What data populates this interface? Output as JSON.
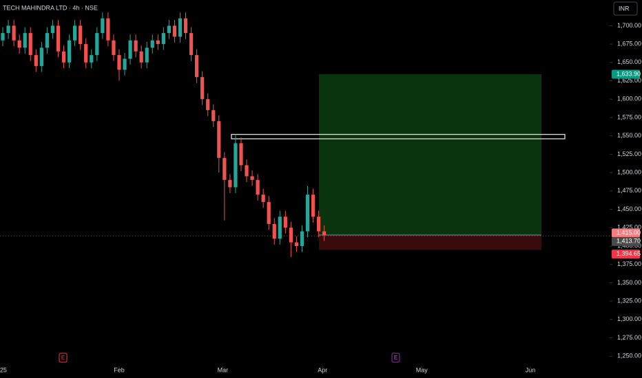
{
  "chart_data": {
    "type": "candlestick",
    "title": "TECH MAHINDRA LTD · 4h · NSE",
    "currency": "INR",
    "up_color": "#26a69a",
    "down_color": "#ef5350",
    "open": [
      1680,
      1690,
      1700,
      1680,
      1670,
      1690,
      1660,
      1645,
      1670,
      1690,
      1700,
      1665,
      1650,
      1680,
      1700,
      1675,
      1650,
      1660,
      1690,
      1710,
      1680,
      1660,
      1640,
      1655,
      1680,
      1665,
      1650,
      1670,
      1680,
      1675,
      1690,
      1700,
      1685,
      1710,
      1690,
      1660,
      1630,
      1600,
      1585,
      1570,
      1520,
      1490,
      1480,
      1540,
      1510,
      1495,
      1490,
      1470,
      1460,
      1430,
      1410,
      1440,
      1425,
      1405,
      1400,
      1420,
      1470,
      1440,
      1420
    ],
    "high": [
      1698,
      1708,
      1708,
      1688,
      1698,
      1698,
      1668,
      1678,
      1698,
      1708,
      1708,
      1673,
      1688,
      1708,
      1708,
      1683,
      1668,
      1698,
      1718,
      1718,
      1688,
      1668,
      1663,
      1688,
      1688,
      1673,
      1678,
      1688,
      1688,
      1698,
      1708,
      1708,
      1718,
      1718,
      1698,
      1668,
      1638,
      1608,
      1593,
      1578,
      1528,
      1498,
      1552,
      1548,
      1518,
      1503,
      1498,
      1478,
      1468,
      1438,
      1448,
      1448,
      1433,
      1413,
      1428,
      1482,
      1478,
      1448,
      1428
    ],
    "low": [
      1672,
      1682,
      1672,
      1662,
      1662,
      1652,
      1637,
      1637,
      1662,
      1682,
      1657,
      1642,
      1642,
      1672,
      1667,
      1642,
      1642,
      1652,
      1682,
      1672,
      1652,
      1625,
      1632,
      1647,
      1657,
      1642,
      1642,
      1662,
      1667,
      1667,
      1682,
      1677,
      1677,
      1682,
      1652,
      1622,
      1592,
      1577,
      1562,
      1500,
      1435,
      1472,
      1472,
      1502,
      1487,
      1482,
      1462,
      1452,
      1422,
      1402,
      1402,
      1417,
      1385,
      1392,
      1392,
      1412,
      1432,
      1412,
      1407
    ],
    "close": [
      1690,
      1700,
      1680,
      1670,
      1690,
      1660,
      1645,
      1670,
      1690,
      1700,
      1665,
      1650,
      1680,
      1700,
      1675,
      1650,
      1660,
      1690,
      1710,
      1680,
      1660,
      1640,
      1655,
      1680,
      1665,
      1650,
      1670,
      1680,
      1675,
      1690,
      1700,
      1685,
      1710,
      1690,
      1660,
      1630,
      1600,
      1585,
      1570,
      1520,
      1490,
      1480,
      1540,
      1510,
      1495,
      1490,
      1470,
      1460,
      1430,
      1410,
      1440,
      1425,
      1405,
      1400,
      1420,
      1470,
      1440,
      1420,
      1415
    ],
    "xlim": [
      -0.5,
      109.5
    ],
    "xticks": [
      {
        "value": 0.1,
        "label": "25"
      },
      {
        "value": 21,
        "label": "Feb"
      },
      {
        "value": 39.7,
        "label": "Mar"
      },
      {
        "value": 57.7,
        "label": "Apr"
      },
      {
        "value": 75.6,
        "label": "May"
      },
      {
        "value": 95.2,
        "label": "Jun"
      }
    ],
    "ylim": [
      1225,
      1735
    ],
    "yticks": [
      {
        "value": 1250,
        "label": "1,250.00"
      },
      {
        "value": 1275,
        "label": "1,275.00"
      },
      {
        "value": 1300,
        "label": "1,300.00"
      },
      {
        "value": 1325,
        "label": "1,325.00"
      },
      {
        "value": 1350,
        "label": "1,350.00"
      },
      {
        "value": 1375,
        "label": "1,375.00"
      },
      {
        "value": 1400,
        "label": "1,400.00"
      },
      {
        "value": 1425,
        "label": "1,425.00"
      },
      {
        "value": 1450,
        "label": "1,450.00"
      },
      {
        "value": 1475,
        "label": "1,475.00"
      },
      {
        "value": 1500,
        "label": "1,500.00"
      },
      {
        "value": 1525,
        "label": "1,525.00"
      },
      {
        "value": 1550,
        "label": "1,550.00"
      },
      {
        "value": 1575,
        "label": "1,575.00"
      },
      {
        "value": 1600,
        "label": "1,600.00"
      },
      {
        "value": 1625,
        "label": "1,625.00"
      },
      {
        "value": 1650,
        "label": "1,650.00"
      },
      {
        "value": 1675,
        "label": "1,675.00"
      },
      {
        "value": 1700,
        "label": "1,700.00"
      }
    ],
    "zone": [
      1546,
      1552
    ],
    "position": {
      "target": {
        "value": 1633.9,
        "label": "1,633.90",
        "color": "#089981"
      },
      "entry": {
        "value": 1415,
        "label": "1,415.00",
        "color": "#f77c80"
      },
      "last": {
        "value": 1413.7,
        "label": "1,413.70",
        "color": "#4a4a4a"
      },
      "stop": {
        "value": 1394.65,
        "label": "1,394.65",
        "color": "#f23645"
      }
    },
    "events": [
      "E",
      "E"
    ]
  }
}
